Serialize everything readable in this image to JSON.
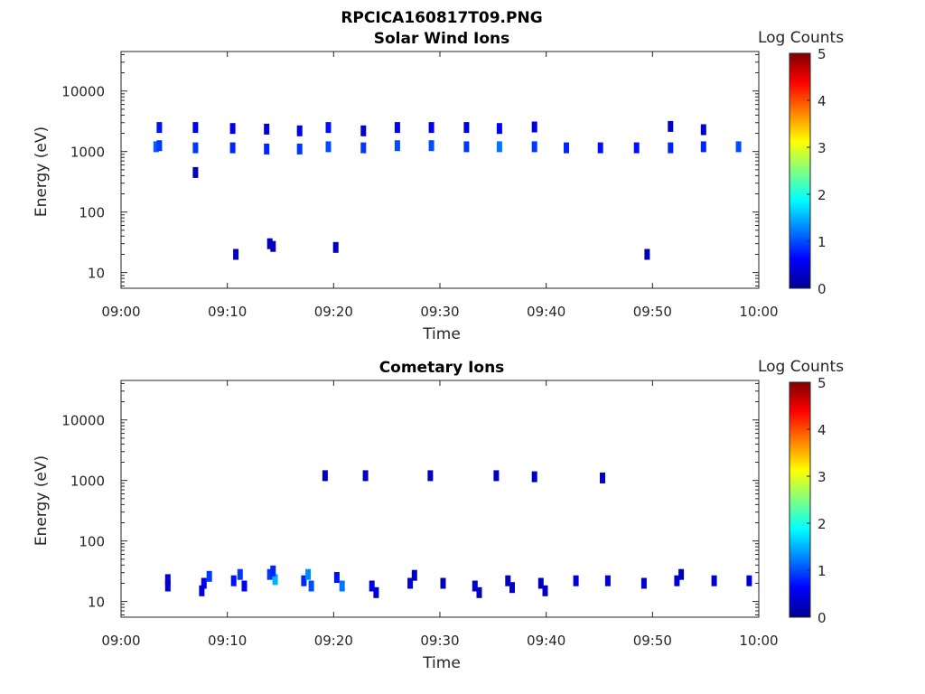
{
  "figure_title": "RPCICA160817T09.PNG",
  "chart_data": [
    {
      "type": "heatmap",
      "title": "Solar Wind Ions",
      "xlabel": "Time",
      "ylabel": "Energy (eV)",
      "x_ticks": [
        "09:00",
        "09:10",
        "09:20",
        "09:30",
        "09:40",
        "09:50",
        "10:00"
      ],
      "y_ticks": [
        "10",
        "100",
        "1000",
        "10000"
      ],
      "xlim": [
        "09:00",
        "10:00"
      ],
      "ylim": [
        5.5,
        45000
      ],
      "y_scale": "log",
      "colorbar": {
        "label": "Log Counts",
        "ticks": [
          "0",
          "1",
          "2",
          "3",
          "4",
          "5"
        ],
        "range": [
          0,
          5
        ],
        "colormap": "jet"
      },
      "cells": [
        {
          "t": 3.3,
          "e": 1200,
          "v": 1.1
        },
        {
          "t": 3.6,
          "e": 1250,
          "v": 0.9
        },
        {
          "t": 3.6,
          "e": 2500,
          "v": 0.7
        },
        {
          "t": 7.0,
          "e": 1150,
          "v": 0.9
        },
        {
          "t": 7.0,
          "e": 2500,
          "v": 0.6
        },
        {
          "t": 7.0,
          "e": 450,
          "v": 0.3
        },
        {
          "t": 10.5,
          "e": 1150,
          "v": 0.8
        },
        {
          "t": 10.5,
          "e": 2400,
          "v": 0.5
        },
        {
          "t": 13.7,
          "e": 1100,
          "v": 0.8
        },
        {
          "t": 13.7,
          "e": 2350,
          "v": 0.4
        },
        {
          "t": 16.8,
          "e": 1100,
          "v": 0.9
        },
        {
          "t": 16.8,
          "e": 2200,
          "v": 0.5
        },
        {
          "t": 19.5,
          "e": 1200,
          "v": 1.0
        },
        {
          "t": 19.5,
          "e": 2500,
          "v": 0.7
        },
        {
          "t": 22.8,
          "e": 1150,
          "v": 0.9
        },
        {
          "t": 22.8,
          "e": 2200,
          "v": 0.4
        },
        {
          "t": 26.0,
          "e": 1250,
          "v": 1.0
        },
        {
          "t": 26.0,
          "e": 2500,
          "v": 0.6
        },
        {
          "t": 29.2,
          "e": 1250,
          "v": 1.0
        },
        {
          "t": 29.2,
          "e": 2500,
          "v": 0.6
        },
        {
          "t": 32.5,
          "e": 1200,
          "v": 0.9
        },
        {
          "t": 32.5,
          "e": 2500,
          "v": 0.5
        },
        {
          "t": 35.6,
          "e": 1200,
          "v": 1.2
        },
        {
          "t": 35.6,
          "e": 2400,
          "v": 0.6
        },
        {
          "t": 38.9,
          "e": 1200,
          "v": 0.9
        },
        {
          "t": 38.9,
          "e": 2550,
          "v": 0.5
        },
        {
          "t": 41.9,
          "e": 1150,
          "v": 0.8
        },
        {
          "t": 45.1,
          "e": 1150,
          "v": 0.7
        },
        {
          "t": 48.5,
          "e": 1150,
          "v": 0.7
        },
        {
          "t": 51.7,
          "e": 1150,
          "v": 0.8
        },
        {
          "t": 51.7,
          "e": 2600,
          "v": 0.4
        },
        {
          "t": 54.8,
          "e": 1200,
          "v": 0.8
        },
        {
          "t": 54.8,
          "e": 2300,
          "v": 0.4
        },
        {
          "t": 58.1,
          "e": 1200,
          "v": 1.0
        },
        {
          "t": 10.8,
          "e": 20,
          "v": 0.3
        },
        {
          "t": 14.0,
          "e": 30,
          "v": 0.3
        },
        {
          "t": 14.3,
          "e": 27,
          "v": 0.3
        },
        {
          "t": 20.2,
          "e": 26,
          "v": 0.3
        },
        {
          "t": 49.5,
          "e": 20,
          "v": 0.3
        }
      ]
    },
    {
      "type": "heatmap",
      "title": "Cometary Ions",
      "xlabel": "Time",
      "ylabel": "Energy (eV)",
      "x_ticks": [
        "09:00",
        "09:10",
        "09:20",
        "09:30",
        "09:40",
        "09:50",
        "10:00"
      ],
      "y_ticks": [
        "10",
        "100",
        "1000",
        "10000"
      ],
      "xlim": [
        "09:00",
        "10:00"
      ],
      "ylim": [
        5.5,
        45000
      ],
      "y_scale": "log",
      "colorbar": {
        "label": "Log Counts",
        "ticks": [
          "0",
          "1",
          "2",
          "3",
          "4",
          "5"
        ],
        "range": [
          0,
          5
        ],
        "colormap": "jet"
      },
      "cells": [
        {
          "t": 4.4,
          "e": 18,
          "v": 0.4
        },
        {
          "t": 4.4,
          "e": 23,
          "v": 0.4
        },
        {
          "t": 7.8,
          "e": 20,
          "v": 0.6
        },
        {
          "t": 8.3,
          "e": 26,
          "v": 0.9
        },
        {
          "t": 7.6,
          "e": 15,
          "v": 0.4
        },
        {
          "t": 10.6,
          "e": 22,
          "v": 0.7
        },
        {
          "t": 11.2,
          "e": 28,
          "v": 0.9
        },
        {
          "t": 11.6,
          "e": 18,
          "v": 0.6
        },
        {
          "t": 14.0,
          "e": 28,
          "v": 0.9
        },
        {
          "t": 14.5,
          "e": 23,
          "v": 1.5
        },
        {
          "t": 14.3,
          "e": 32,
          "v": 0.8
        },
        {
          "t": 17.2,
          "e": 22,
          "v": 0.8
        },
        {
          "t": 17.6,
          "e": 28,
          "v": 1.3
        },
        {
          "t": 17.9,
          "e": 18,
          "v": 1.0
        },
        {
          "t": 20.3,
          "e": 25,
          "v": 0.7
        },
        {
          "t": 20.8,
          "e": 18,
          "v": 1.2
        },
        {
          "t": 23.6,
          "e": 18,
          "v": 0.5
        },
        {
          "t": 24.0,
          "e": 14,
          "v": 0.4
        },
        {
          "t": 27.2,
          "e": 20,
          "v": 0.4
        },
        {
          "t": 27.6,
          "e": 27,
          "v": 0.3
        },
        {
          "t": 30.3,
          "e": 20,
          "v": 0.3
        },
        {
          "t": 33.3,
          "e": 18,
          "v": 0.4
        },
        {
          "t": 33.7,
          "e": 14,
          "v": 0.3
        },
        {
          "t": 36.4,
          "e": 22,
          "v": 0.3
        },
        {
          "t": 36.8,
          "e": 17,
          "v": 0.3
        },
        {
          "t": 39.5,
          "e": 20,
          "v": 0.3
        },
        {
          "t": 39.9,
          "e": 15,
          "v": 0.3
        },
        {
          "t": 42.8,
          "e": 22,
          "v": 0.4
        },
        {
          "t": 45.8,
          "e": 22,
          "v": 0.4
        },
        {
          "t": 49.2,
          "e": 20,
          "v": 0.4
        },
        {
          "t": 52.3,
          "e": 22,
          "v": 0.4
        },
        {
          "t": 52.7,
          "e": 28,
          "v": 0.3
        },
        {
          "t": 55.8,
          "e": 22,
          "v": 0.4
        },
        {
          "t": 59.1,
          "e": 22,
          "v": 0.4
        },
        {
          "t": 19.2,
          "e": 1200,
          "v": 0.3
        },
        {
          "t": 23.0,
          "e": 1200,
          "v": 0.3
        },
        {
          "t": 29.1,
          "e": 1200,
          "v": 0.3
        },
        {
          "t": 35.3,
          "e": 1200,
          "v": 0.3
        },
        {
          "t": 38.9,
          "e": 1150,
          "v": 0.3
        },
        {
          "t": 45.3,
          "e": 1100,
          "v": 0.3
        }
      ]
    }
  ]
}
